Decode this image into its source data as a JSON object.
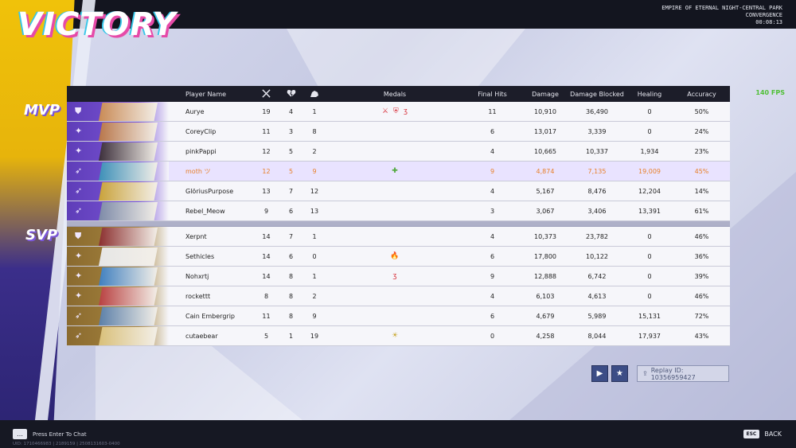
{
  "header": {
    "result": "VICTORY",
    "map_line1": "EMPIRE OF ETERNAL NIGHT-CENTRAL PARK",
    "mode": "CONVERGENCE",
    "time": "00:08:13",
    "fps": "140 FPS"
  },
  "labels": {
    "mvp": "MVP",
    "svp": "SVP"
  },
  "columns": {
    "player_name": "Player Name",
    "kills_icon": "crossed-swords-icon",
    "deaths_icon": "broken-heart-icon",
    "assists_icon": "assist-hand-icon",
    "medals": "Medals",
    "final_hits": "Final Hits",
    "damage": "Damage",
    "damage_blocked": "Damage Blocked",
    "healing": "Healing",
    "accuracy": "Accuracy"
  },
  "team_allies": [
    {
      "name": "Aurye",
      "k": "19",
      "d": "4",
      "a": "1",
      "medals": [
        "⚔",
        "⛨",
        "ʒ"
      ],
      "fh": "11",
      "dmg": "10,910",
      "blk": "36,490",
      "heal": "0",
      "acc": "50%",
      "role_icon": "vanguard-icon",
      "avatar_color": "#c98a55"
    },
    {
      "name": "CoreyClip",
      "k": "11",
      "d": "3",
      "a": "8",
      "medals": [],
      "fh": "6",
      "dmg": "13,017",
      "blk": "3,339",
      "heal": "0",
      "acc": "24%",
      "role_icon": "duelist-icon",
      "avatar_color": "#b8764a"
    },
    {
      "name": "pinkPappi",
      "k": "12",
      "d": "5",
      "a": "2",
      "medals": [],
      "fh": "4",
      "dmg": "10,665",
      "blk": "10,337",
      "heal": "1,934",
      "acc": "23%",
      "role_icon": "duelist-icon",
      "avatar_color": "#3b2e3a"
    },
    {
      "name": "moth ツ",
      "k": "12",
      "d": "5",
      "a": "9",
      "medals": [
        "✚"
      ],
      "fh": "9",
      "dmg": "4,874",
      "blk": "7,135",
      "heal": "19,009",
      "acc": "45%",
      "role_icon": "strategist-icon",
      "avatar_color": "#3c8fb8",
      "self": true
    },
    {
      "name": "GlöriusPurpose",
      "k": "13",
      "d": "7",
      "a": "12",
      "medals": [],
      "fh": "4",
      "dmg": "5,167",
      "blk": "8,476",
      "heal": "12,204",
      "acc": "14%",
      "role_icon": "strategist-icon",
      "avatar_color": "#c9a23a"
    },
    {
      "name": "Rebel_Meow",
      "k": "9",
      "d": "6",
      "a": "13",
      "medals": [],
      "fh": "3",
      "dmg": "3,067",
      "blk": "3,406",
      "heal": "13,391",
      "acc": "61%",
      "role_icon": "strategist-icon",
      "avatar_color": "#7d8aa8"
    }
  ],
  "team_enemies": [
    {
      "name": "Xerpnt",
      "k": "14",
      "d": "7",
      "a": "1",
      "medals": [],
      "fh": "4",
      "dmg": "10,373",
      "blk": "23,782",
      "heal": "0",
      "acc": "46%",
      "role_icon": "vanguard-icon",
      "avatar_color": "#8b2f2f"
    },
    {
      "name": "Sethicles",
      "k": "14",
      "d": "6",
      "a": "0",
      "medals": [
        "🔥"
      ],
      "fh": "6",
      "dmg": "17,800",
      "blk": "10,122",
      "heal": "0",
      "acc": "36%",
      "role_icon": "duelist-icon",
      "avatar_color": "#e6e6e6"
    },
    {
      "name": "Nohxrtj",
      "k": "14",
      "d": "8",
      "a": "1",
      "medals": [
        "ʒ"
      ],
      "fh": "9",
      "dmg": "12,888",
      "blk": "6,742",
      "heal": "0",
      "acc": "39%",
      "role_icon": "duelist-icon",
      "avatar_color": "#3f7fbf"
    },
    {
      "name": "rockettt",
      "k": "8",
      "d": "8",
      "a": "2",
      "medals": [],
      "fh": "4",
      "dmg": "6,103",
      "blk": "4,613",
      "heal": "0",
      "acc": "46%",
      "role_icon": "duelist-icon",
      "avatar_color": "#b84040"
    },
    {
      "name": "Cain Embergrip",
      "k": "11",
      "d": "8",
      "a": "9",
      "medals": [],
      "fh": "6",
      "dmg": "4,679",
      "blk": "5,989",
      "heal": "15,131",
      "acc": "72%",
      "role_icon": "strategist-icon",
      "avatar_color": "#5b7fa8"
    },
    {
      "name": "cutaebear",
      "k": "5",
      "d": "1",
      "a": "19",
      "medals": [
        "☀"
      ],
      "fh": "0",
      "dmg": "4,258",
      "blk": "8,044",
      "heal": "17,937",
      "acc": "43%",
      "role_icon": "strategist-icon",
      "avatar_color": "#d9c07a"
    }
  ],
  "replay": {
    "label": "Replay ID: 10356959427"
  },
  "footer": {
    "chat_prompt": "Press Enter To Chat",
    "uid": "UID: 1710466983 | 2189159 | 2508131603-0400",
    "esc_key": "ESC",
    "back": "BACK"
  },
  "colors": {
    "ally": "#6b49c8",
    "enemy": "#a07e3a",
    "self_text": "#e8802b"
  }
}
